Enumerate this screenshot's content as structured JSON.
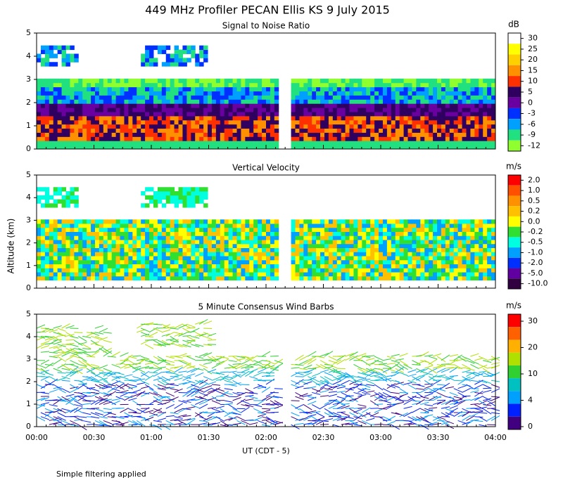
{
  "chart_data": {
    "type": "profiler",
    "title": "449 MHz Profiler PECAN Ellis KS  9 July 2015",
    "ylabel": "Altitude (km)",
    "xlabel": "UT  (CDT - 5)",
    "footnote": "Simple filtering applied",
    "categories": [
      "00:00",
      "00:30",
      "01:00",
      "01:30",
      "02:00",
      "02:30",
      "03:00",
      "03:30",
      "04:00"
    ],
    "ylim": [
      0,
      5
    ],
    "yticks": [
      0,
      1,
      2,
      3,
      4,
      5
    ],
    "panels": [
      {
        "title": "Signal to Noise Ratio",
        "unit": "dB",
        "colors": [
          "#ffffff",
          "#ffff00",
          "#ffd000",
          "#ff9000",
          "#ff3000",
          "#300060",
          "#6a00a0",
          "#0030ff",
          "#00a0ff",
          "#20e080",
          "#90ff30"
        ],
        "ticks": [
          30,
          25,
          20,
          15,
          10,
          5,
          0,
          -3,
          -6,
          -9,
          -12
        ]
      },
      {
        "title": "Vertical Velocity",
        "unit": "m/s",
        "colors": [
          "#ff0000",
          "#ff5000",
          "#ff9000",
          "#ffc000",
          "#ffff00",
          "#30e030",
          "#00ffe0",
          "#00a0ff",
          "#0030ff",
          "#6000a0",
          "#300040"
        ],
        "ticks": [
          {
            "value": 2,
            "label": "2.0"
          },
          {
            "value": 1,
            "label": "1.0"
          },
          0.5,
          0.2,
          {
            "value": 0,
            "label": "0.0"
          },
          -0.2,
          -0.5,
          {
            "value": -1,
            "label": "-1.0"
          },
          {
            "value": -2,
            "label": "-2.0"
          },
          {
            "value": -5,
            "label": "-5.0"
          },
          {
            "value": -10,
            "label": "-10.0"
          }
        ]
      },
      {
        "title": "5 Minute Consensus Wind Barbs",
        "unit": "m/s",
        "colors": [
          "#ff0000",
          "#ff6000",
          "#ffb000",
          "#b0e000",
          "#30d030",
          "#00c0c0",
          "#00a0ff",
          "#0020ff",
          "#400080"
        ],
        "ticks": [
          30,
          20,
          10,
          4,
          0
        ]
      }
    ]
  }
}
